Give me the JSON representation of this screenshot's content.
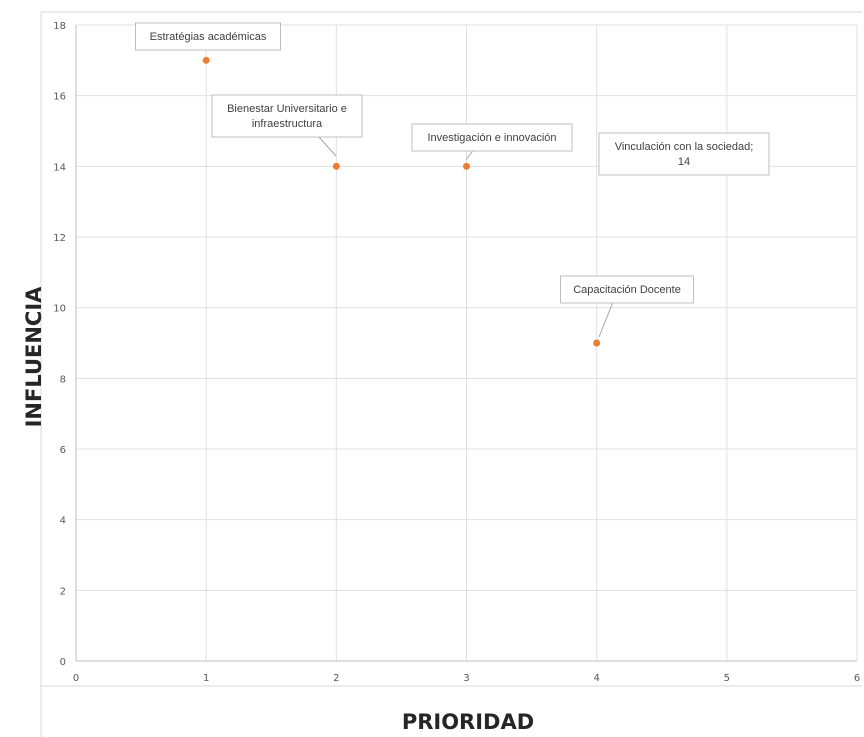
{
  "chart_data": {
    "type": "scatter",
    "title": "",
    "xlabel": "PRIORIDAD",
    "ylabel": "INFLUENCIA",
    "xlim": [
      0,
      6
    ],
    "ylim": [
      0,
      18
    ],
    "xticks": [
      "0",
      "1",
      "2",
      "3",
      "4",
      "5",
      "6"
    ],
    "yticks": [
      "0",
      "2",
      "4",
      "6",
      "8",
      "10",
      "12",
      "14",
      "16",
      "18"
    ],
    "grid": true,
    "legend": "none",
    "marker_color": "#ed7d31",
    "points": [
      {
        "x": 1,
        "y": 17,
        "label": [
          "Estratégias académicas"
        ]
      },
      {
        "x": 2,
        "y": 14,
        "label": [
          "Bienestar Universitario e",
          "infraestructura"
        ]
      },
      {
        "x": 3,
        "y": 14,
        "label": [
          "Investigación e innovación"
        ]
      },
      {
        "x": 4,
        "y": 9,
        "label": [
          "Capacitación Docente"
        ]
      },
      {
        "x": 4,
        "y": 14,
        "label": [
          "Vinculación con la sociedad;",
          "14"
        ],
        "marker_visible": false
      }
    ]
  }
}
